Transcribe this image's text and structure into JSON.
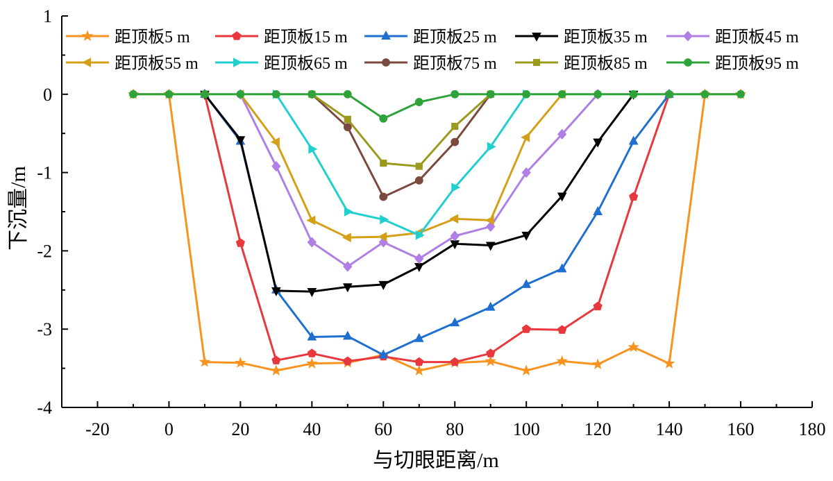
{
  "chart_data": {
    "type": "line",
    "xlabel": "与切眼距离/m",
    "ylabel": "下沉量/m",
    "xlim": [
      -30,
      180
    ],
    "ylim": [
      -4,
      1
    ],
    "x_ticks": [
      "-20",
      "0",
      "20",
      "40",
      "60",
      "80",
      "100",
      "120",
      "140",
      "160",
      "180"
    ],
    "y_ticks": [
      "1",
      "0",
      "-1",
      "-2",
      "-3",
      "-4"
    ],
    "x_tick_values": [
      -20,
      0,
      20,
      40,
      60,
      80,
      100,
      120,
      140,
      160,
      180
    ],
    "y_tick_values": [
      1,
      0,
      -1,
      -2,
      -3,
      -4
    ],
    "grid": false,
    "legend_position": "top",
    "series": [
      {
        "name": "距顶板5 m",
        "color": "#f7931e",
        "marker": "star",
        "points": [
          [
            -10,
            0
          ],
          [
            0,
            0
          ],
          [
            10,
            -3.42
          ],
          [
            20,
            -3.43
          ],
          [
            30,
            -3.53
          ],
          [
            40,
            -3.44
          ],
          [
            50,
            -3.43
          ],
          [
            60,
            -3.33
          ],
          [
            70,
            -3.53
          ],
          [
            80,
            -3.43
          ],
          [
            90,
            -3.41
          ],
          [
            100,
            -3.53
          ],
          [
            110,
            -3.41
          ],
          [
            120,
            -3.45
          ],
          [
            130,
            -3.23
          ],
          [
            140,
            -3.44
          ],
          [
            150,
            0
          ],
          [
            160,
            0
          ]
        ]
      },
      {
        "name": "距顶板15 m",
        "color": "#e8383d",
        "marker": "pentagon",
        "points": [
          [
            10,
            0
          ],
          [
            20,
            -1.9
          ],
          [
            30,
            -3.4
          ],
          [
            40,
            -3.31
          ],
          [
            50,
            -3.41
          ],
          [
            60,
            -3.35
          ],
          [
            70,
            -3.42
          ],
          [
            80,
            -3.42
          ],
          [
            90,
            -3.31
          ],
          [
            100,
            -3.0
          ],
          [
            110,
            -3.01
          ],
          [
            120,
            -2.71
          ],
          [
            130,
            -1.31
          ],
          [
            140,
            0
          ]
        ]
      },
      {
        "name": "距顶板25 m",
        "color": "#1f6fd1",
        "marker": "triangle-up",
        "points": [
          [
            10,
            0
          ],
          [
            20,
            -0.6
          ],
          [
            30,
            -2.5
          ],
          [
            40,
            -3.1
          ],
          [
            50,
            -3.09
          ],
          [
            60,
            -3.33
          ],
          [
            70,
            -3.12
          ],
          [
            80,
            -2.92
          ],
          [
            90,
            -2.72
          ],
          [
            100,
            -2.43
          ],
          [
            110,
            -2.23
          ],
          [
            120,
            -1.5
          ],
          [
            130,
            -0.6
          ],
          [
            140,
            0
          ]
        ]
      },
      {
        "name": "距顶板35 m",
        "color": "#000000",
        "marker": "triangle-down",
        "points": [
          [
            10,
            0
          ],
          [
            20,
            -0.58
          ],
          [
            30,
            -2.51
          ],
          [
            40,
            -2.52
          ],
          [
            50,
            -2.46
          ],
          [
            60,
            -2.43
          ],
          [
            70,
            -2.2
          ],
          [
            80,
            -1.91
          ],
          [
            90,
            -1.93
          ],
          [
            100,
            -1.8
          ],
          [
            110,
            -1.3
          ],
          [
            120,
            -0.61
          ],
          [
            130,
            0
          ]
        ]
      },
      {
        "name": "距顶板45 m",
        "color": "#b07fe6",
        "marker": "diamond",
        "points": [
          [
            20,
            0
          ],
          [
            30,
            -0.92
          ],
          [
            40,
            -1.89
          ],
          [
            50,
            -2.2
          ],
          [
            60,
            -1.89
          ],
          [
            70,
            -2.1
          ],
          [
            80,
            -1.81
          ],
          [
            90,
            -1.69
          ],
          [
            100,
            -1.0
          ],
          [
            110,
            -0.51
          ],
          [
            120,
            0
          ]
        ]
      },
      {
        "name": "距顶板55 m",
        "color": "#d4a017",
        "marker": "triangle-left",
        "points": [
          [
            20,
            0
          ],
          [
            30,
            -0.61
          ],
          [
            40,
            -1.61
          ],
          [
            50,
            -1.83
          ],
          [
            60,
            -1.82
          ],
          [
            70,
            -1.77
          ],
          [
            80,
            -1.59
          ],
          [
            90,
            -1.61
          ],
          [
            100,
            -0.55
          ],
          [
            110,
            0
          ]
        ]
      },
      {
        "name": "距顶板65 m",
        "color": "#22cfcf",
        "marker": "triangle-right",
        "points": [
          [
            30,
            0
          ],
          [
            40,
            -0.7
          ],
          [
            50,
            -1.5
          ],
          [
            60,
            -1.6
          ],
          [
            70,
            -1.8
          ],
          [
            80,
            -1.19
          ],
          [
            90,
            -0.67
          ],
          [
            100,
            0
          ]
        ]
      },
      {
        "name": "距顶板75 m",
        "color": "#7a4a3e",
        "marker": "circle",
        "points": [
          [
            40,
            0
          ],
          [
            50,
            -0.42
          ],
          [
            60,
            -1.31
          ],
          [
            70,
            -1.1
          ],
          [
            80,
            -0.61
          ],
          [
            90,
            0
          ]
        ]
      },
      {
        "name": "距顶板85 m",
        "color": "#9a9a1e",
        "marker": "square",
        "points": [
          [
            40,
            0
          ],
          [
            50,
            -0.32
          ],
          [
            60,
            -0.88
          ],
          [
            70,
            -0.92
          ],
          [
            80,
            -0.41
          ],
          [
            90,
            0
          ]
        ]
      },
      {
        "name": "距顶板95 m",
        "color": "#2ea33a",
        "marker": "circle",
        "points": [
          [
            -10,
            0
          ],
          [
            0,
            0
          ],
          [
            10,
            0
          ],
          [
            20,
            0
          ],
          [
            30,
            0
          ],
          [
            40,
            0
          ],
          [
            50,
            0
          ],
          [
            60,
            -0.31
          ],
          [
            70,
            -0.1
          ],
          [
            80,
            0
          ],
          [
            90,
            0
          ],
          [
            100,
            0
          ],
          [
            110,
            0
          ],
          [
            120,
            0
          ],
          [
            130,
            0
          ],
          [
            140,
            0
          ],
          [
            150,
            0
          ],
          [
            160,
            0
          ]
        ]
      }
    ]
  }
}
